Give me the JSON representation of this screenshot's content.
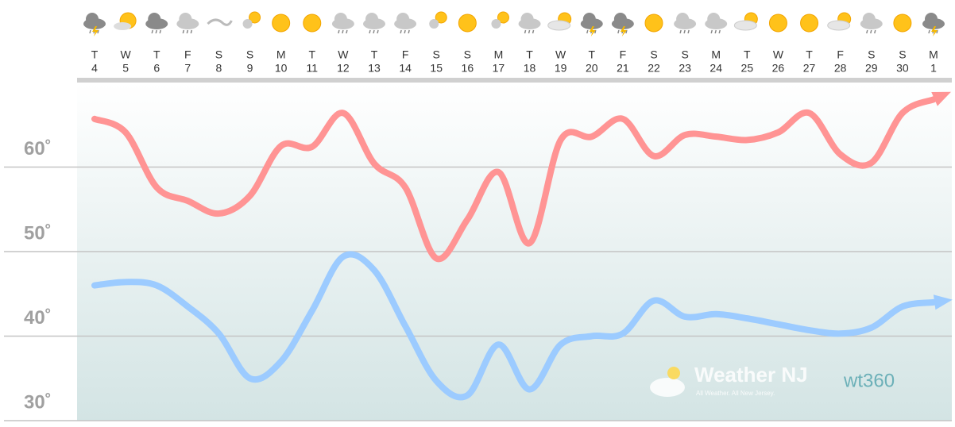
{
  "chart_data": {
    "type": "line",
    "categories": [
      "4",
      "5",
      "6",
      "7",
      "8",
      "9",
      "10",
      "11",
      "12",
      "13",
      "14",
      "15",
      "16",
      "17",
      "18",
      "19",
      "20",
      "21",
      "22",
      "23",
      "24",
      "25",
      "26",
      "27",
      "28",
      "29",
      "30",
      "1"
    ],
    "weekdays": [
      "T",
      "W",
      "T",
      "F",
      "S",
      "S",
      "M",
      "T",
      "W",
      "T",
      "F",
      "S",
      "S",
      "M",
      "T",
      "W",
      "T",
      "F",
      "S",
      "S",
      "M",
      "T",
      "W",
      "T",
      "F",
      "S",
      "S",
      "M"
    ],
    "series": [
      {
        "color": "#ff9494",
        "values": [
          65.7,
          64.1,
          57.6,
          56,
          54.5,
          56.6,
          62.5,
          62.4,
          66.4,
          60.4,
          57.6,
          49.2,
          53.8,
          59.4,
          51,
          63.2,
          63.6,
          65.7,
          61.3,
          63.8,
          63.6,
          63.2,
          64.1,
          66.4,
          61.5,
          60.5,
          66.4,
          68
        ]
      },
      {
        "color": "#9ccbff",
        "values": [
          46,
          46.4,
          46,
          43.5,
          40.3,
          35,
          37,
          43,
          49.4,
          47.8,
          41.2,
          34.7,
          33,
          39,
          33.7,
          39,
          40,
          40.3,
          44.2,
          42.3,
          42.6,
          42.1,
          41.4,
          40.7,
          40.3,
          41,
          43.5,
          44
        ]
      }
    ],
    "ylim": [
      30,
      70
    ],
    "yticks": [
      {
        "value": 30,
        "label": "30˚"
      },
      {
        "value": 40,
        "label": "40˚"
      },
      {
        "value": 50,
        "label": "50˚"
      },
      {
        "value": 60,
        "label": "60˚"
      }
    ],
    "grid": true,
    "watermark": {
      "title": "Weather NJ",
      "tagline": "All Weather. All New Jersey.",
      "logo": "wt360"
    }
  }
}
